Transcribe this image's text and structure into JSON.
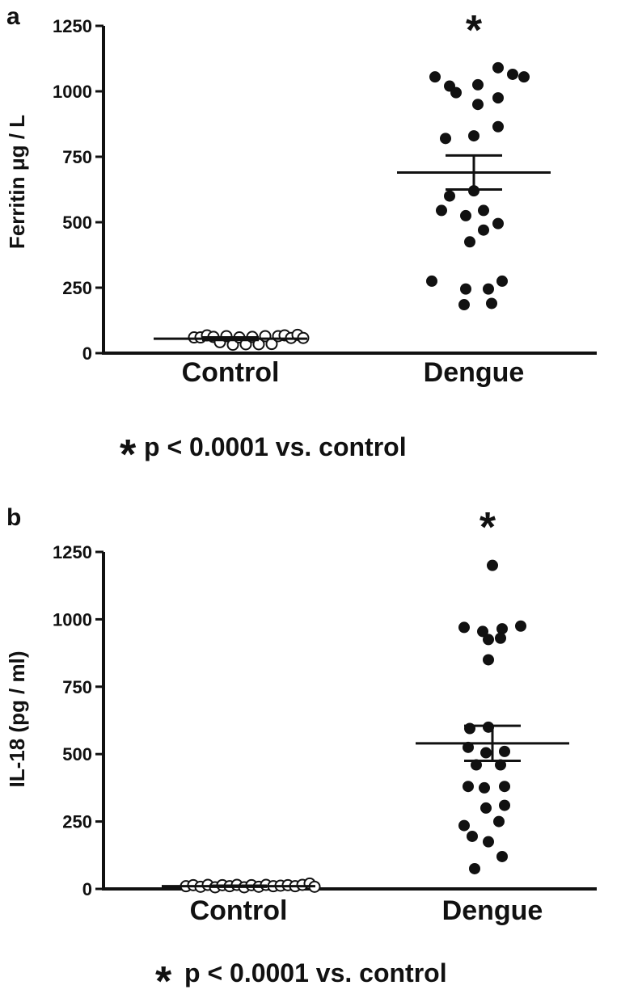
{
  "colors": {
    "ink": "#111111",
    "background": "#ffffff"
  },
  "chart_data": [
    {
      "type": "scatter",
      "panel_label": "a",
      "ylabel": "Ferritin μg / L",
      "ylim": [
        0,
        1250
      ],
      "yticks": [
        0,
        250,
        500,
        750,
        1000,
        1250
      ],
      "categories": [
        "Control",
        "Dengue"
      ],
      "significance_marker": "*",
      "footnote": {
        "star": "*",
        "text": "p < 0.0001 vs. control"
      },
      "series": [
        {
          "category": "Control",
          "marker": "open-circle",
          "mean": 55,
          "sem_low": 50,
          "sem_high": 60,
          "points": [
            {
              "x": -0.45,
              "y": 60
            },
            {
              "x": -0.37,
              "y": 60
            },
            {
              "x": -0.29,
              "y": 68
            },
            {
              "x": -0.21,
              "y": 62
            },
            {
              "x": -0.13,
              "y": 42
            },
            {
              "x": -0.05,
              "y": 65
            },
            {
              "x": 0.03,
              "y": 32
            },
            {
              "x": 0.11,
              "y": 60
            },
            {
              "x": 0.19,
              "y": 34
            },
            {
              "x": 0.27,
              "y": 62
            },
            {
              "x": 0.35,
              "y": 34
            },
            {
              "x": 0.43,
              "y": 65
            },
            {
              "x": 0.51,
              "y": 35
            },
            {
              "x": 0.59,
              "y": 65
            },
            {
              "x": 0.67,
              "y": 68
            },
            {
              "x": 0.75,
              "y": 58
            },
            {
              "x": 0.83,
              "y": 70
            },
            {
              "x": 0.9,
              "y": 58
            }
          ]
        },
        {
          "category": "Dengue",
          "marker": "filled-circle",
          "mean": 690,
          "sem_low": 625,
          "sem_high": 755,
          "points": [
            {
              "x": -0.48,
              "y": 1055
            },
            {
              "x": -0.3,
              "y": 1020
            },
            {
              "x": 0.05,
              "y": 1025
            },
            {
              "x": 0.3,
              "y": 1090
            },
            {
              "x": 0.48,
              "y": 1065
            },
            {
              "x": 0.62,
              "y": 1055
            },
            {
              "x": -0.22,
              "y": 995
            },
            {
              "x": 0.05,
              "y": 950
            },
            {
              "x": 0.3,
              "y": 975
            },
            {
              "x": -0.35,
              "y": 820
            },
            {
              "x": 0.0,
              "y": 830
            },
            {
              "x": 0.3,
              "y": 865
            },
            {
              "x": -0.3,
              "y": 600
            },
            {
              "x": 0.0,
              "y": 620
            },
            {
              "x": -0.4,
              "y": 545
            },
            {
              "x": -0.1,
              "y": 525
            },
            {
              "x": 0.12,
              "y": 545
            },
            {
              "x": 0.3,
              "y": 495
            },
            {
              "x": 0.12,
              "y": 470
            },
            {
              "x": -0.05,
              "y": 425
            },
            {
              "x": -0.52,
              "y": 275
            },
            {
              "x": 0.35,
              "y": 275
            },
            {
              "x": -0.1,
              "y": 245
            },
            {
              "x": 0.18,
              "y": 245
            },
            {
              "x": -0.12,
              "y": 185
            },
            {
              "x": 0.22,
              "y": 190
            }
          ]
        }
      ]
    },
    {
      "type": "scatter",
      "panel_label": "b",
      "ylabel": "IL-18 (pg / ml)",
      "ylim": [
        0,
        1250
      ],
      "yticks": [
        0,
        250,
        500,
        750,
        1000,
        1250
      ],
      "categories": [
        "Control",
        "Dengue"
      ],
      "significance_marker": "*",
      "footnote": {
        "star": "*",
        "text": "p < 0.0001 vs. control"
      },
      "series": [
        {
          "category": "Control",
          "marker": "open-circle",
          "mean": 10,
          "sem_low": 8,
          "sem_high": 12,
          "points": [
            {
              "x": -0.65,
              "y": 10
            },
            {
              "x": -0.56,
              "y": 14
            },
            {
              "x": -0.47,
              "y": 8
            },
            {
              "x": -0.38,
              "y": 15
            },
            {
              "x": -0.29,
              "y": 6
            },
            {
              "x": -0.2,
              "y": 14
            },
            {
              "x": -0.11,
              "y": 10
            },
            {
              "x": -0.02,
              "y": 15
            },
            {
              "x": 0.07,
              "y": 6
            },
            {
              "x": 0.16,
              "y": 14
            },
            {
              "x": 0.25,
              "y": 8
            },
            {
              "x": 0.34,
              "y": 15
            },
            {
              "x": 0.43,
              "y": 10
            },
            {
              "x": 0.52,
              "y": 12
            },
            {
              "x": 0.61,
              "y": 14
            },
            {
              "x": 0.7,
              "y": 10
            },
            {
              "x": 0.79,
              "y": 15
            },
            {
              "x": 0.88,
              "y": 20
            },
            {
              "x": 0.94,
              "y": 8
            }
          ]
        },
        {
          "category": "Dengue",
          "marker": "filled-circle",
          "mean": 540,
          "sem_low": 475,
          "sem_high": 605,
          "points": [
            {
              "x": 0.0,
              "y": 1200
            },
            {
              "x": -0.35,
              "y": 970
            },
            {
              "x": -0.12,
              "y": 955
            },
            {
              "x": 0.12,
              "y": 965
            },
            {
              "x": 0.35,
              "y": 975
            },
            {
              "x": -0.05,
              "y": 925
            },
            {
              "x": 0.1,
              "y": 930
            },
            {
              "x": -0.05,
              "y": 850
            },
            {
              "x": -0.28,
              "y": 595
            },
            {
              "x": -0.05,
              "y": 600
            },
            {
              "x": -0.3,
              "y": 525
            },
            {
              "x": -0.08,
              "y": 505
            },
            {
              "x": 0.15,
              "y": 510
            },
            {
              "x": -0.2,
              "y": 460
            },
            {
              "x": 0.1,
              "y": 460
            },
            {
              "x": -0.3,
              "y": 380
            },
            {
              "x": -0.1,
              "y": 375
            },
            {
              "x": 0.15,
              "y": 380
            },
            {
              "x": -0.08,
              "y": 300
            },
            {
              "x": 0.15,
              "y": 310
            },
            {
              "x": -0.35,
              "y": 235
            },
            {
              "x": 0.08,
              "y": 250
            },
            {
              "x": -0.25,
              "y": 195
            },
            {
              "x": -0.05,
              "y": 175
            },
            {
              "x": 0.12,
              "y": 120
            },
            {
              "x": -0.22,
              "y": 75
            }
          ]
        }
      ]
    }
  ]
}
